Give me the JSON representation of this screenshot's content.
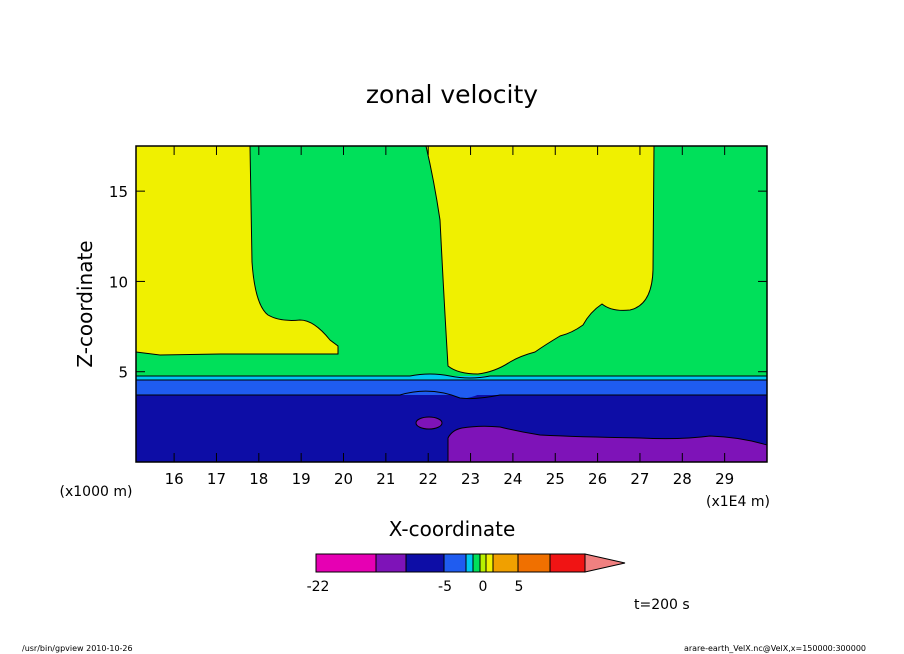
{
  "chart_data": {
    "type": "heatmap",
    "subtype": "filled-contour",
    "title": "zonal velocity",
    "xlabel": "X-coordinate",
    "ylabel": "Z-coordinate",
    "x_unit_label": "(x1000 m)",
    "x_scale_label": "(x1E4 m)",
    "xlim": [
      15.1,
      30
    ],
    "ylim": [
      0,
      17.5
    ],
    "x_ticks": [
      16,
      17,
      18,
      19,
      20,
      21,
      22,
      23,
      24,
      25,
      26,
      27,
      28,
      29
    ],
    "y_ticks": [
      5,
      10,
      15
    ],
    "colorbar": {
      "tick_labels": [
        {
          "value": -22,
          "label": "-22"
        },
        {
          "value": -5,
          "label": "-5"
        },
        {
          "value": 0,
          "label": "0"
        },
        {
          "value": 5,
          "label": "5"
        }
      ],
      "colors": [
        "#e600b3",
        "#7e13b8",
        "#0d0da6",
        "#1f5cf0",
        "#00c8f0",
        "#00e05a",
        "#b8f000",
        "#f0f000",
        "#f0a000",
        "#f07000",
        "#f01414",
        "#f08080"
      ]
    },
    "regions": [
      {
        "name": "deep-negative",
        "color": "#7e13b8"
      },
      {
        "name": "negative",
        "color": "#0d0da6"
      },
      {
        "name": "weak-negative",
        "color": "#1f5cf0"
      },
      {
        "name": "near-zero",
        "color": "#00c8f0"
      },
      {
        "name": "small-positive",
        "color": "#00e05a"
      },
      {
        "name": "positive",
        "color": "#f0f000"
      }
    ],
    "annotation": "t=200 s"
  },
  "footer": {
    "left": "/usr/bin/gpview  2010-10-26",
    "right": "arare-earth_VelX.nc@VelX,x=150000:300000"
  }
}
